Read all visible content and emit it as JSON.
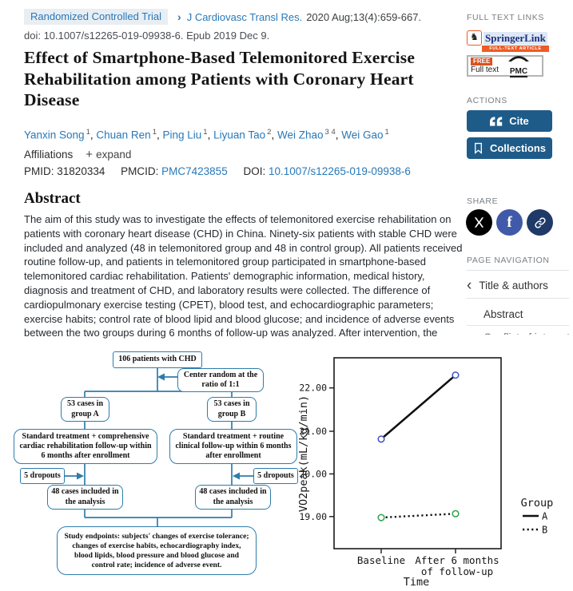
{
  "header": {
    "badge": "Randomized Controlled Trial",
    "journal_link": "J Cardiovasc Transl Res.",
    "citation": "2020 Aug;13(4):659-667.",
    "doi_line": "doi: 10.1007/s12265-019-09938-6. Epub 2019 Dec 9.",
    "title": "Effect of Smartphone-Based Telemonitored Exercise Rehabilitation among Patients with Coronary Heart Disease"
  },
  "authors": [
    {
      "name": "Yanxin Song",
      "sup": "1"
    },
    {
      "name": "Chuan Ren",
      "sup": "1"
    },
    {
      "name": "Ping Liu",
      "sup": "1"
    },
    {
      "name": "Liyuan Tao",
      "sup": "2"
    },
    {
      "name": "Wei Zhao",
      "sup": "3 4"
    },
    {
      "name": "Wei Gao",
      "sup": "1"
    }
  ],
  "meta": {
    "affiliations_label": "Affiliations",
    "expand_label": "expand",
    "pmid_label": "PMID:",
    "pmid": "31820334",
    "pmcid_label": "PMCID:",
    "pmcid": "PMC7423855",
    "doi_label": "DOI:",
    "doi": "10.1007/s12265-019-09938-6"
  },
  "abstract": {
    "heading": "Abstract",
    "text": "The aim of this study was to investigate the effects of telemonitored exercise rehabilitation on patients with coronary heart disease (CHD) in China. Ninety-six patients with stable CHD were included and analyzed (48 in telemonitored group and 48 in control group). All patients received routine follow-up, and patients in telemonitored group participated in smartphone-based telemonitored cardiac rehabilitation. Patients' demographic information, medical history, diagnosis and treatment of CHD, and laboratory results were collected. The difference of cardiopulmonary exercise testing (CPET), blood test, and echocardiographic parameters; exercise habits; control rate of blood lipid and blood glucose; and incidence of adverse events between the two groups during 6 months of follow-up was analyzed. After intervention, the subjects in the telemonitored group"
  },
  "sidebar": {
    "full_text_links_label": "FULL TEXT LINKS",
    "springer": {
      "name": "SpringerLink",
      "sub": "FULL-TEXT ARTICLE"
    },
    "pmc": {
      "free": "FREE",
      "full_text": "Full text",
      "logo": "PMC"
    },
    "actions_label": "ACTIONS",
    "cite_label": "Cite",
    "collections_label": "Collections",
    "share_label": "SHARE",
    "page_nav_label": "PAGE NAVIGATION",
    "nav_items": [
      {
        "label": "Title & authors"
      },
      {
        "label": "Abstract"
      },
      {
        "label": "Conflict of interest statement"
      }
    ]
  },
  "icons": {
    "journal_chevron": "›",
    "expand_plus": "+",
    "nav_chevron": "‹",
    "facebook_f": "f",
    "springer_knight": "♞"
  },
  "flowchart": {
    "node_total": "106 patients with CHD",
    "node_random": "Center random at the ratio of 1:1",
    "node_group_a": "53 cases in group A",
    "node_group_b": "53 cases in group B",
    "node_treat_a": "Standard treatment + comprehensive cardiac rehabilitation follow-up within 6 months after enrollment",
    "node_treat_b": "Standard treatment + routine clinical follow-up within 6 months after enrollment",
    "node_dropout_a": "5 dropouts",
    "node_dropout_b": "5 dropouts",
    "node_analysis_a": "48 cases included in the analysis",
    "node_analysis_b": "48 cases included in the analysis",
    "node_endpoints": "Study endpoints: subjects' changes of exercise tolerance; changes of exercise habits, echocardiography index, blood lipids, blood pressure and blood glucose and control rate; incidence of adverse event."
  },
  "chart_data": {
    "type": "line",
    "x": [
      "Baseline",
      "After 6 months of follow-up"
    ],
    "xtick_lines": [
      "Baseline",
      "After 6 months",
      "of follow-up"
    ],
    "series": [
      {
        "name": "A",
        "values": [
          20.8,
          22.3
        ],
        "style": "solid",
        "line_color": "#111111",
        "marker_color": "#4150c0"
      },
      {
        "name": "B",
        "values": [
          18.96,
          19.05
        ],
        "style": "dotted",
        "line_color": "#111111",
        "marker_color": "#2fa04a"
      }
    ],
    "ylabel": "VO2peak(mL/kg/min)",
    "xlabel": "Time",
    "ytick_labels": [
      "22.00",
      "21.00",
      "20.00",
      "19.00"
    ],
    "yticks": [
      22.0,
      21.0,
      20.0,
      19.0
    ],
    "ylim": [
      18.55,
      22.7
    ],
    "grid": false,
    "legend_title": "Group",
    "legend_position": "right"
  },
  "colors": {
    "link_blue": "#2878b8",
    "badge_bg": "#e9eef3",
    "button_blue": "#1f5b88",
    "flow_blue": "#2e7cab",
    "springer_orange": "#ef5b25",
    "free_orange": "#d9531e",
    "facebook_blue": "#4059a9",
    "x_black": "#000000",
    "share_link_navy": "#1f3a68"
  }
}
